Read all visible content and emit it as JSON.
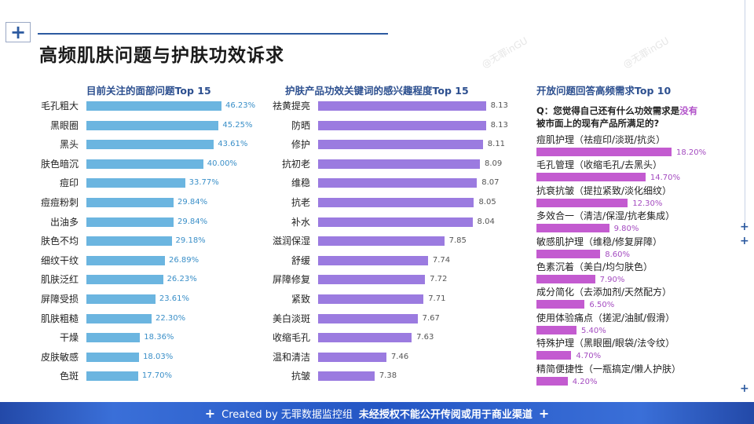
{
  "header": {
    "title": "高频肌肤问题与护肤功效诉求",
    "logo_icon": "plus-icon"
  },
  "watermark": "@无罪inGU",
  "chart_data": [
    {
      "type": "bar",
      "orientation": "horizontal",
      "title": "目前关注的面部问题Top 15",
      "color": "#6bb5e0",
      "unit": "%",
      "categories": [
        "毛孔粗大",
        "黑眼圈",
        "黑头",
        "肤色暗沉",
        "痘印",
        "痘痘粉刺",
        "出油多",
        "肤色不均",
        "细纹干纹",
        "肌肤泛红",
        "屏障受损",
        "肌肤粗糙",
        "干燥",
        "皮肤敏感",
        "色斑"
      ],
      "values": [
        46.23,
        45.25,
        43.61,
        40.0,
        33.77,
        29.84,
        29.84,
        29.18,
        26.89,
        26.23,
        23.61,
        22.3,
        18.36,
        18.03,
        17.7
      ],
      "labels": [
        "46.23%",
        "45.25%",
        "43.61%",
        "40.00%",
        "33.77%",
        "29.84%",
        "29.84%",
        "29.18%",
        "26.89%",
        "26.23%",
        "23.61%",
        "22.30%",
        "18.36%",
        "18.03%",
        "17.70%"
      ]
    },
    {
      "type": "bar",
      "orientation": "horizontal",
      "title": "护肤产品功效关键词的感兴趣程度Top 15",
      "color": "#9b7be0",
      "categories": [
        "祛黄提亮",
        "防晒",
        "修护",
        "抗初老",
        "维稳",
        "抗老",
        "补水",
        "滋润保湿",
        "舒缓",
        "屏障修复",
        "紧致",
        "美白淡斑",
        "收缩毛孔",
        "温和清洁",
        "抗皱"
      ],
      "values": [
        8.13,
        8.13,
        8.11,
        8.09,
        8.07,
        8.05,
        8.04,
        7.85,
        7.74,
        7.72,
        7.71,
        7.67,
        7.63,
        7.46,
        7.38
      ],
      "labels": [
        "8.13",
        "8.13",
        "8.11",
        "8.09",
        "8.07",
        "8.05",
        "8.04",
        "7.85",
        "7.74",
        "7.72",
        "7.71",
        "7.67",
        "7.63",
        "7.46",
        "7.38"
      ]
    },
    {
      "type": "bar",
      "orientation": "horizontal",
      "title": "开放问题回答高频需求Top 10",
      "color": "#c35bd0",
      "unit": "%",
      "question_prefix": "Q：您觉得自己还有什么功效需求是",
      "question_highlight": "没有",
      "question_suffix": "被市面上的现有产品所满足的?",
      "categories": [
        "痘肌护理（祛痘印/淡斑/抗炎）",
        "毛孔管理（收缩毛孔/去黑头）",
        "抗衰抗皱（提拉紧致/淡化细纹）",
        "多效合一（清洁/保湿/抗老集成）",
        "敏感肌护理（维稳/修复屏障）",
        "色素沉着（美白/均匀肤色）",
        "成分简化（去添加剂/天然配方）",
        "使用体验痛点（搓泥/油腻/假滑）",
        "特殊护理（黑眼圈/眼袋/法令纹）",
        "精简便捷性（一瓶搞定/懒人护肤）"
      ],
      "values": [
        18.2,
        14.7,
        12.3,
        9.8,
        8.6,
        7.9,
        6.5,
        5.4,
        4.7,
        4.2
      ],
      "labels": [
        "18.20%",
        "14.70%",
        "12.30%",
        "9.80%",
        "8.60%",
        "7.90%",
        "6.50%",
        "5.40%",
        "4.70%",
        "4.20%"
      ]
    }
  ],
  "footer": {
    "created": "Created by 无罪数据监控组",
    "notice": "未经授权不能公开传阅或用于商业渠道"
  }
}
